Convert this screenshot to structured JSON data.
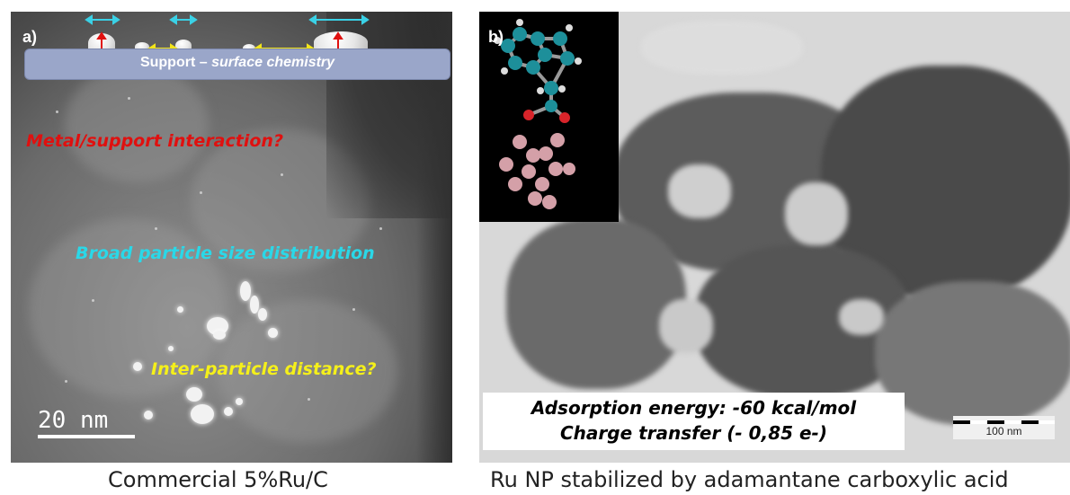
{
  "panel_a": {
    "label": "a)",
    "support_text_plain": "Support –",
    "support_text_italic": "surface chemistry",
    "annotation_metal": "Metal/support interaction?",
    "annotation_broad": "Broad particle size distribution",
    "annotation_inter": "Inter-particle distance?",
    "scale_text": "20 nm",
    "caption": "Commercial 5%Ru/C"
  },
  "panel_b": {
    "label": "b)",
    "energy_line1": "Adsorption energy: -60 kcal/mol",
    "energy_line2": "Charge transfer (- 0,85 e-)",
    "scale_text": "100 nm",
    "caption": "Ru NP stabilized by adamantane carboxylic acid"
  },
  "colors": {
    "metal_annotation": "#e0100f",
    "broad_annotation": "#2ad8e8",
    "inter_annotation": "#f5f01a",
    "support_bar": "#9aa6c9"
  }
}
